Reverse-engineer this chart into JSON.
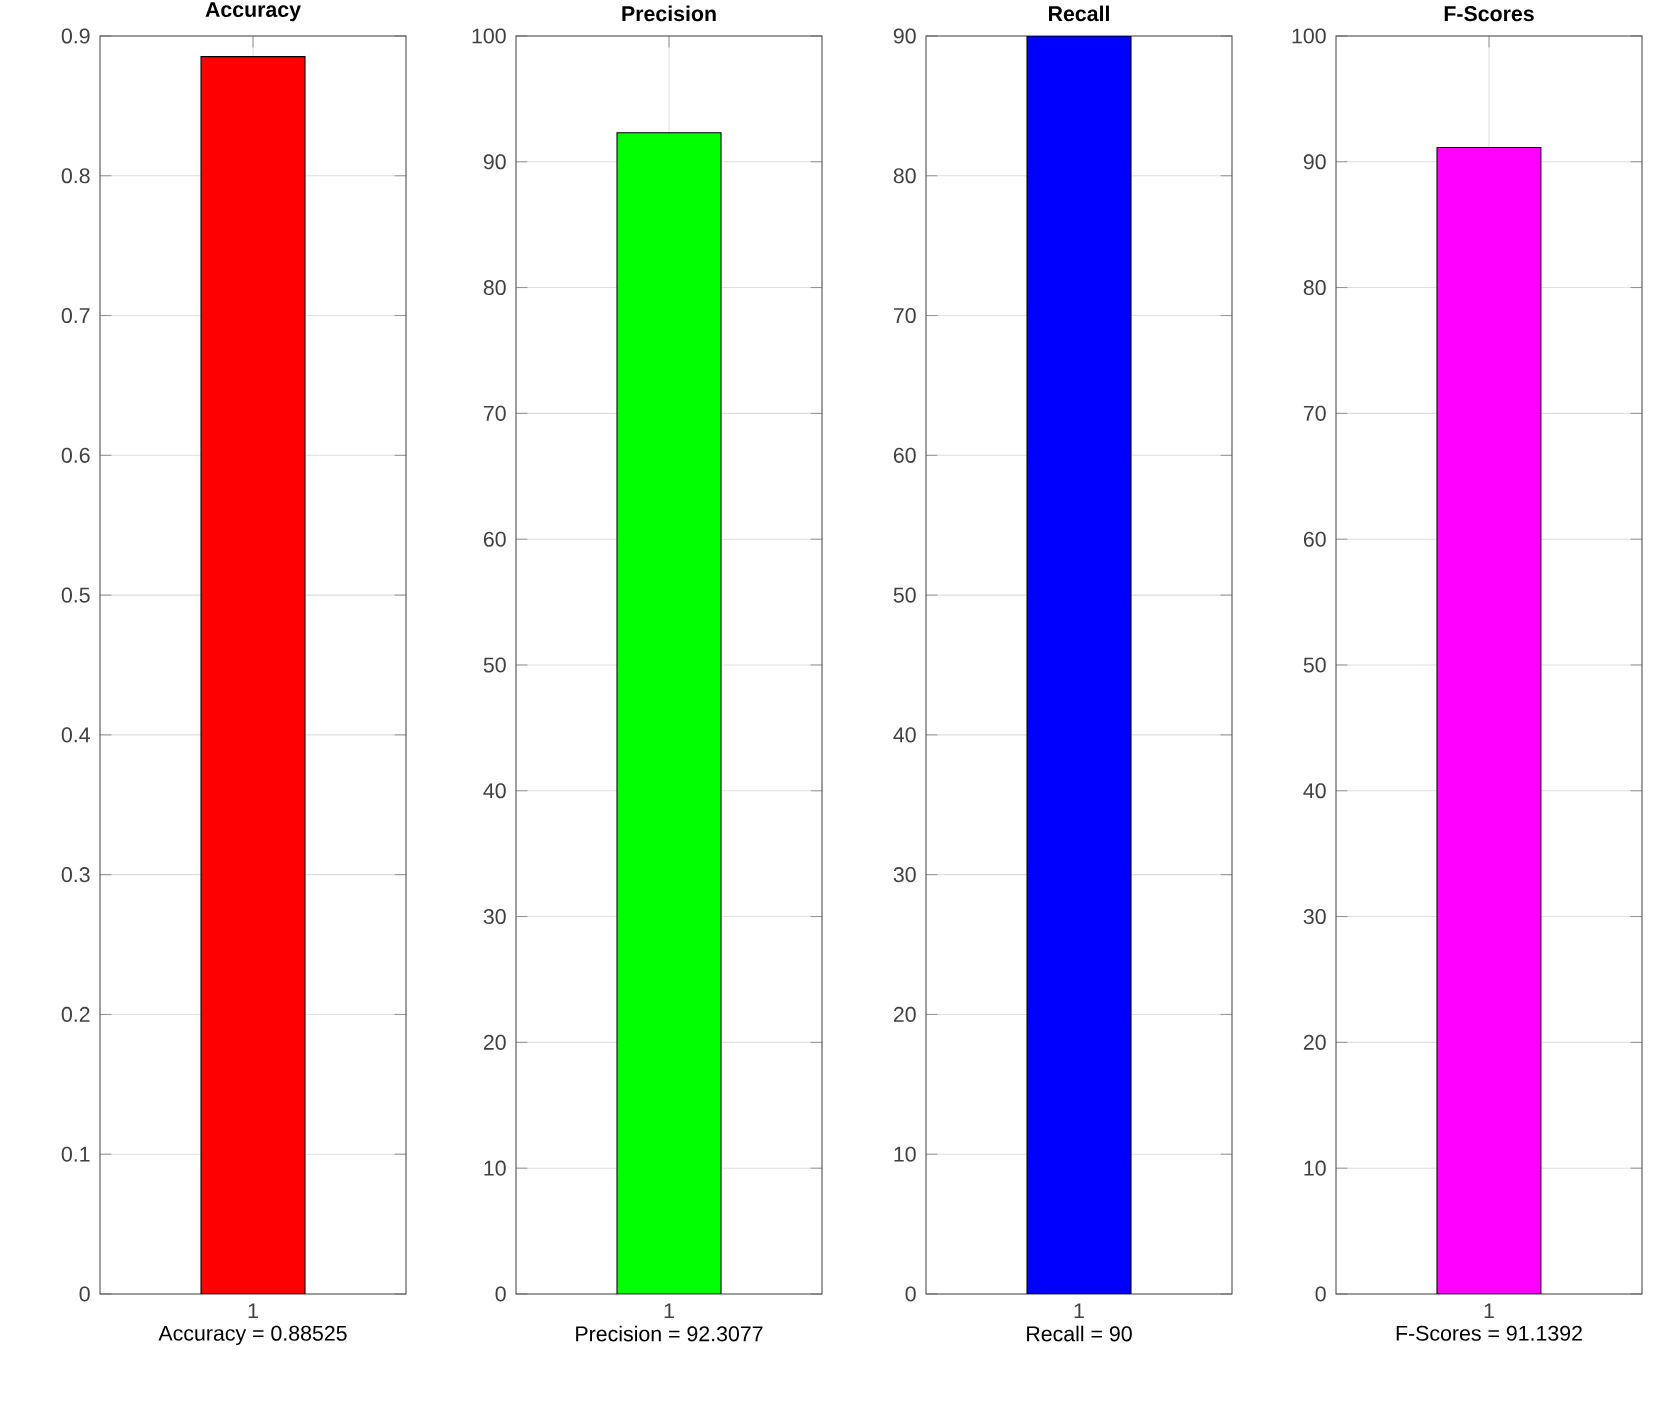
{
  "chart_data": [
    {
      "type": "bar",
      "title": "Accuracy",
      "xlabel": "Accuracy = 0.88525",
      "categories": [
        "1"
      ],
      "values": [
        0.88525
      ],
      "color": "#ff0000",
      "ylim": [
        0,
        0.9
      ],
      "yticks": [
        0,
        0.1,
        0.2,
        0.3,
        0.4,
        0.5,
        0.6,
        0.7,
        0.8,
        0.9
      ],
      "grid": true
    },
    {
      "type": "bar",
      "title": "Precision",
      "xlabel": "Precision = 92.3077",
      "categories": [
        "1"
      ],
      "values": [
        92.3077
      ],
      "color": "#00ff00",
      "ylim": [
        0,
        100
      ],
      "yticks": [
        0,
        10,
        20,
        30,
        40,
        50,
        60,
        70,
        80,
        90,
        100
      ],
      "grid": true
    },
    {
      "type": "bar",
      "title": "Recall",
      "xlabel": "Recall = 90",
      "categories": [
        "1"
      ],
      "values": [
        90
      ],
      "color": "#0000ff",
      "ylim": [
        0,
        90
      ],
      "yticks": [
        0,
        10,
        20,
        30,
        40,
        50,
        60,
        70,
        80,
        90
      ],
      "grid": true
    },
    {
      "type": "bar",
      "title": "F-Scores",
      "xlabel": "F-Scores = 91.1392",
      "categories": [
        "1"
      ],
      "values": [
        91.1392
      ],
      "color": "#ff00ff",
      "ylim": [
        0,
        100
      ],
      "yticks": [
        0,
        10,
        20,
        30,
        40,
        50,
        60,
        70,
        80,
        90,
        100
      ],
      "grid": true
    }
  ]
}
